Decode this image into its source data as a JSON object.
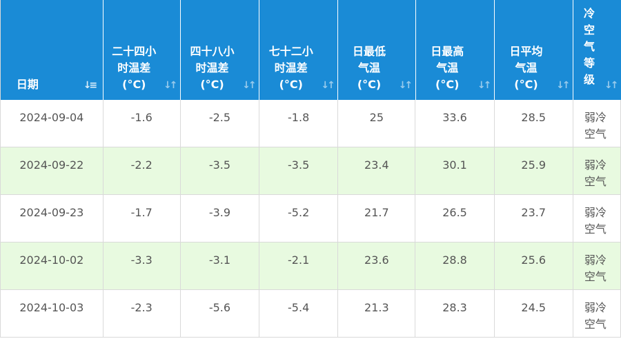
{
  "columns": [
    {
      "label": "日期",
      "key": "date"
    },
    {
      "label": "二十四小\n时温差\n(°C)",
      "key": "d24"
    },
    {
      "label": "四十八小\n时温差\n(°C)",
      "key": "d48"
    },
    {
      "label": "七十二小\n时温差\n(°C)",
      "key": "d72"
    },
    {
      "label": "日最低\n气温\n(°C)",
      "key": "tmin"
    },
    {
      "label": "日最高\n气温\n(°C)",
      "key": "tmax"
    },
    {
      "label": "日平均\n气温\n(°C)",
      "key": "tavg"
    },
    {
      "label": "冷\n空\n气\n等\n级",
      "key": "grade"
    }
  ],
  "sort_icons": {
    "active": "↓≡",
    "inactive": "↓↑"
  },
  "rows": [
    {
      "date": "2024-09-04",
      "d24": "-1.6",
      "d48": "-2.5",
      "d72": "-1.8",
      "tmin": "25",
      "tmax": "33.6",
      "tavg": "28.5",
      "grade": "弱冷\n空气"
    },
    {
      "date": "2024-09-22",
      "d24": "-2.2",
      "d48": "-3.5",
      "d72": "-3.5",
      "tmin": "23.4",
      "tmax": "30.1",
      "tavg": "25.9",
      "grade": "弱冷\n空气"
    },
    {
      "date": "2024-09-23",
      "d24": "-1.7",
      "d48": "-3.9",
      "d72": "-5.2",
      "tmin": "21.7",
      "tmax": "26.5",
      "tavg": "23.7",
      "grade": "弱冷\n空气"
    },
    {
      "date": "2024-10-02",
      "d24": "-3.3",
      "d48": "-3.1",
      "d72": "-2.1",
      "tmin": "23.6",
      "tmax": "28.8",
      "tavg": "25.6",
      "grade": "弱冷\n空气"
    },
    {
      "date": "2024-10-03",
      "d24": "-2.3",
      "d48": "-5.6",
      "d72": "-5.4",
      "tmin": "21.3",
      "tmax": "28.3",
      "tavg": "24.5",
      "grade": "弱冷\n空气"
    }
  ],
  "colors": {
    "header_bg": "#1a8bd6",
    "alt_row_bg": "#e8fae0",
    "text": "#555555"
  }
}
